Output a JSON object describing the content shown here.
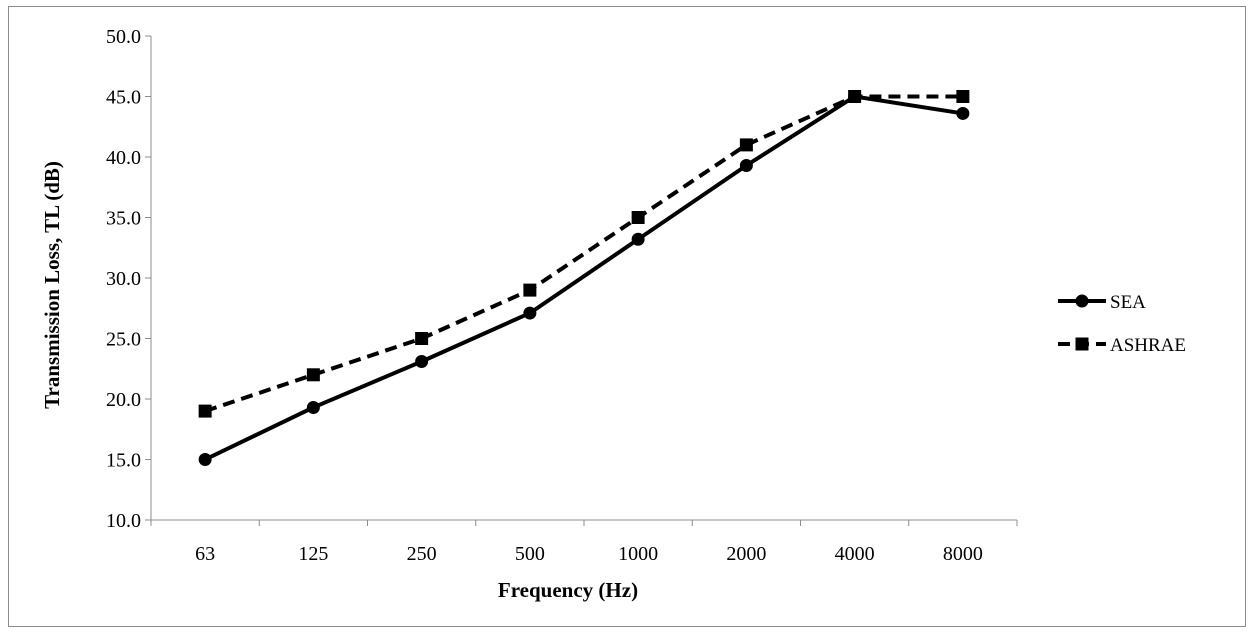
{
  "chart_data": {
    "type": "line",
    "title": "",
    "xlabel": "Frequency (Hz)",
    "ylabel": "Transmission Loss, TL (dB)",
    "categories": [
      "63",
      "125",
      "250",
      "500",
      "1000",
      "2000",
      "4000",
      "8000"
    ],
    "ylim": [
      10.0,
      50.0
    ],
    "yticks": [
      "10.0",
      "15.0",
      "20.0",
      "25.0",
      "30.0",
      "35.0",
      "40.0",
      "45.0",
      "50.0"
    ],
    "grid": false,
    "legend_position": "right",
    "series": [
      {
        "name": "SEA",
        "values": [
          15.0,
          19.3,
          23.1,
          27.1,
          33.2,
          39.3,
          45.0,
          43.6
        ],
        "line_style": "solid",
        "marker": "circle",
        "color": "#000000"
      },
      {
        "name": "ASHRAE",
        "values": [
          19.0,
          22.0,
          25.0,
          29.0,
          35.0,
          41.0,
          45.0,
          45.0
        ],
        "line_style": "dashed",
        "marker": "square",
        "color": "#000000"
      }
    ]
  }
}
